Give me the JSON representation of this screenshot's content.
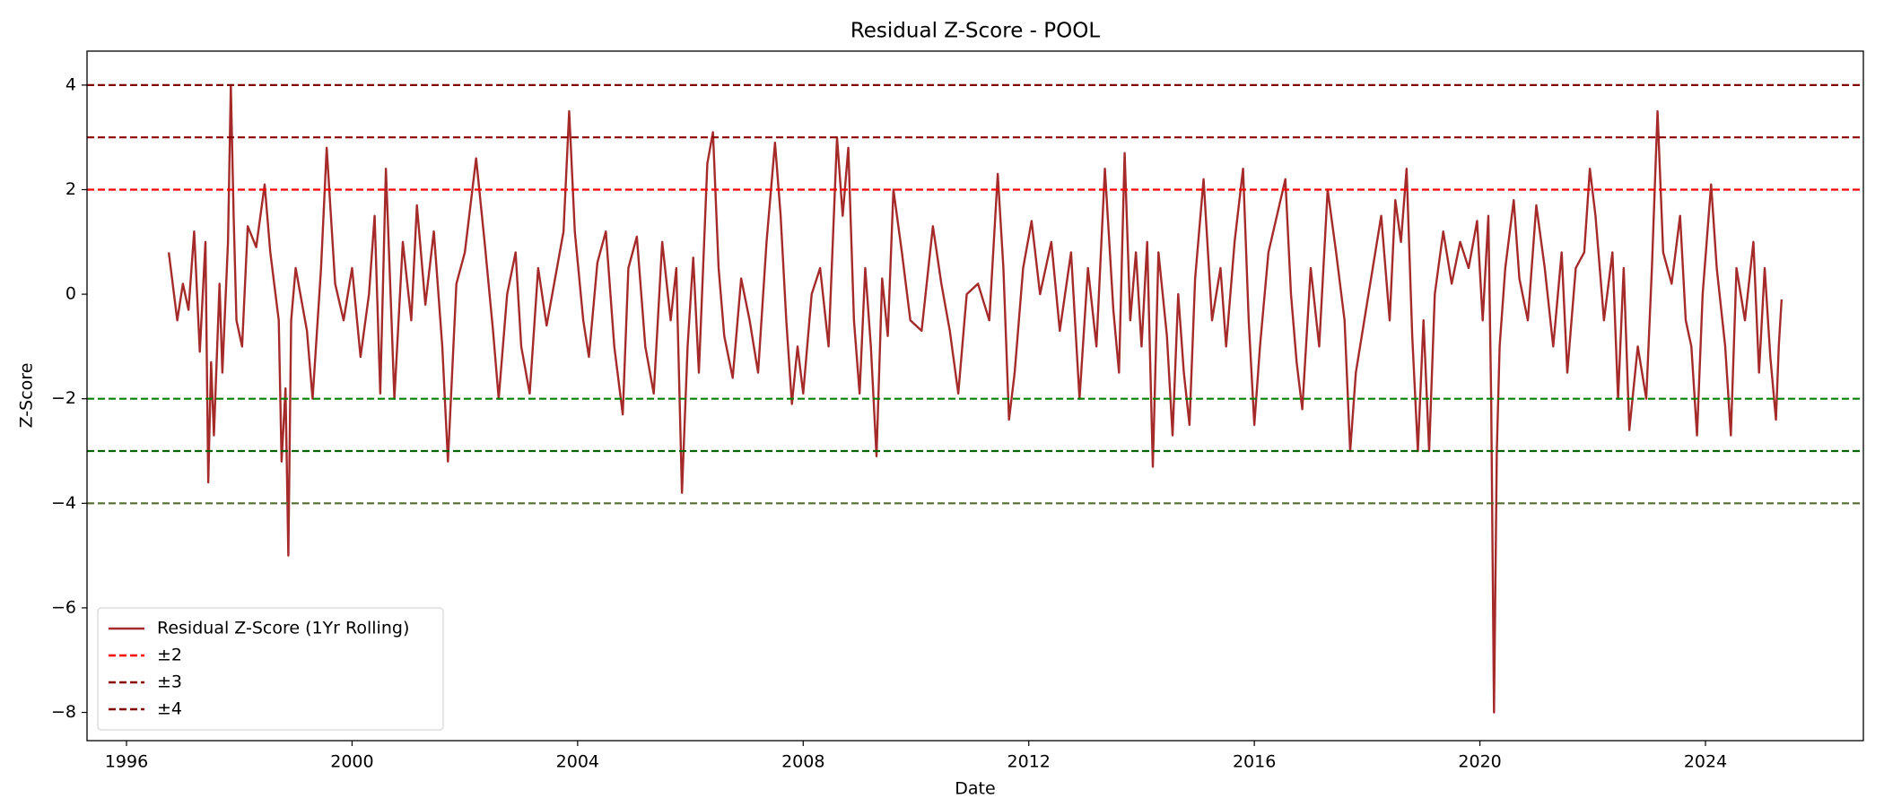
{
  "chart_data": {
    "type": "line",
    "title": "Residual Z-Score - POOL",
    "x_label": "Date",
    "y_label": "Z-Score",
    "x": [
      1996.75,
      1996.9,
      1997.0,
      1997.1,
      1997.2,
      1997.3,
      1997.4,
      1997.45,
      1997.5,
      1997.55,
      1997.65,
      1997.7,
      1997.8,
      1997.85,
      1997.9,
      1997.95,
      1998.05,
      1998.15,
      1998.3,
      1998.45,
      1998.55,
      1998.7,
      1998.75,
      1998.82,
      1998.87,
      1998.92,
      1999.0,
      1999.2,
      1999.3,
      1999.45,
      1999.55,
      1999.7,
      1999.85,
      2000.0,
      2000.15,
      2000.3,
      2000.4,
      2000.5,
      2000.6,
      2000.7,
      2000.75,
      2000.9,
      2001.05,
      2001.15,
      2001.3,
      2001.45,
      2001.6,
      2001.7,
      2001.85,
      2002.0,
      2002.2,
      2002.35,
      2002.5,
      2002.6,
      2002.75,
      2002.9,
      2003.0,
      2003.15,
      2003.3,
      2003.45,
      2003.6,
      2003.75,
      2003.85,
      2003.95,
      2004.1,
      2004.2,
      2004.35,
      2004.5,
      2004.65,
      2004.8,
      2004.9,
      2005.05,
      2005.2,
      2005.35,
      2005.5,
      2005.65,
      2005.75,
      2005.85,
      2005.95,
      2006.05,
      2006.15,
      2006.3,
      2006.4,
      2006.5,
      2006.6,
      2006.75,
      2006.9,
      2007.05,
      2007.2,
      2007.35,
      2007.5,
      2007.6,
      2007.7,
      2007.8,
      2007.9,
      2008.0,
      2008.15,
      2008.3,
      2008.45,
      2008.6,
      2008.7,
      2008.8,
      2008.9,
      2009.0,
      2009.1,
      2009.2,
      2009.3,
      2009.4,
      2009.5,
      2009.6,
      2009.75,
      2009.9,
      2010.1,
      2010.3,
      2010.45,
      2010.6,
      2010.75,
      2010.9,
      2011.1,
      2011.3,
      2011.45,
      2011.55,
      2011.65,
      2011.75,
      2011.9,
      2012.05,
      2012.2,
      2012.4,
      2012.55,
      2012.75,
      2012.9,
      2013.05,
      2013.2,
      2013.35,
      2013.5,
      2013.6,
      2013.7,
      2013.8,
      2013.9,
      2014.0,
      2014.1,
      2014.2,
      2014.3,
      2014.45,
      2014.55,
      2014.65,
      2014.75,
      2014.85,
      2014.95,
      2015.1,
      2015.25,
      2015.4,
      2015.5,
      2015.65,
      2015.8,
      2015.9,
      2016.0,
      2016.1,
      2016.25,
      2016.4,
      2016.55,
      2016.65,
      2016.75,
      2016.85,
      2017.0,
      2017.15,
      2017.3,
      2017.45,
      2017.6,
      2017.7,
      2017.8,
      2017.95,
      2018.1,
      2018.25,
      2018.4,
      2018.5,
      2018.6,
      2018.7,
      2018.8,
      2018.9,
      2019.0,
      2019.1,
      2019.2,
      2019.35,
      2019.5,
      2019.65,
      2019.8,
      2019.95,
      2020.05,
      2020.15,
      2020.2,
      2020.25,
      2020.3,
      2020.35,
      2020.45,
      2020.6,
      2020.7,
      2020.85,
      2021.0,
      2021.15,
      2021.3,
      2021.45,
      2021.55,
      2021.7,
      2021.85,
      2021.95,
      2022.05,
      2022.2,
      2022.35,
      2022.45,
      2022.55,
      2022.65,
      2022.8,
      2022.95,
      2023.05,
      2023.15,
      2023.25,
      2023.4,
      2023.55,
      2023.65,
      2023.75,
      2023.85,
      2023.95,
      2024.1,
      2024.2,
      2024.35,
      2024.45,
      2024.55,
      2024.7,
      2024.85,
      2024.95,
      2025.05,
      2025.15,
      2025.25,
      2025.3,
      2025.35
    ],
    "series": [
      {
        "name": "Residual Z-Score (1Yr Rolling)",
        "color": "#a52a2a",
        "values": [
          0.8,
          -0.5,
          0.2,
          -0.3,
          1.2,
          -1.1,
          1.0,
          -3.6,
          -1.3,
          -2.7,
          0.2,
          -1.5,
          1.0,
          4.0,
          1.5,
          -0.5,
          -1.0,
          1.3,
          0.9,
          2.1,
          0.8,
          -0.5,
          -3.2,
          -1.8,
          -5.0,
          -0.5,
          0.5,
          -0.7,
          -2.0,
          0.5,
          2.8,
          0.2,
          -0.5,
          0.5,
          -1.2,
          0.0,
          1.5,
          -1.9,
          2.4,
          -0.5,
          -2.0,
          1.0,
          -0.5,
          1.7,
          -0.2,
          1.2,
          -1.0,
          -3.2,
          0.2,
          0.8,
          2.6,
          1.0,
          -0.7,
          -2.0,
          0.0,
          0.8,
          -1.0,
          -1.9,
          0.5,
          -0.6,
          0.3,
          1.2,
          3.5,
          1.2,
          -0.5,
          -1.2,
          0.6,
          1.2,
          -1.0,
          -2.3,
          0.5,
          1.1,
          -1.0,
          -1.9,
          1.0,
          -0.5,
          0.5,
          -3.8,
          -1.0,
          0.7,
          -1.5,
          2.5,
          3.1,
          0.5,
          -0.8,
          -1.6,
          0.3,
          -0.5,
          -1.5,
          1.0,
          2.9,
          1.5,
          -0.5,
          -2.1,
          -1.0,
          -1.9,
          0.0,
          0.5,
          -1.0,
          3.0,
          1.5,
          2.8,
          -0.5,
          -1.9,
          0.5,
          -1.0,
          -3.1,
          0.3,
          -0.8,
          2.0,
          0.8,
          -0.5,
          -0.7,
          1.3,
          0.2,
          -0.7,
          -1.9,
          0.0,
          0.2,
          -0.5,
          2.3,
          0.5,
          -2.4,
          -1.5,
          0.5,
          1.4,
          0.0,
          1.0,
          -0.7,
          0.8,
          -2.0,
          0.5,
          -1.0,
          2.4,
          -0.3,
          -1.5,
          2.7,
          -0.5,
          0.8,
          -1.0,
          1.0,
          -3.3,
          0.8,
          -0.8,
          -2.7,
          0.0,
          -1.5,
          -2.5,
          0.3,
          2.2,
          -0.5,
          0.5,
          -1.0,
          1.0,
          2.4,
          -0.5,
          -2.5,
          -1.0,
          0.8,
          1.5,
          2.2,
          0.0,
          -1.3,
          -2.2,
          0.5,
          -1.0,
          2.0,
          0.8,
          -0.5,
          -3.0,
          -1.5,
          -0.5,
          0.5,
          1.5,
          -0.5,
          1.8,
          1.0,
          2.4,
          -0.8,
          -3.0,
          -0.5,
          -3.0,
          0.0,
          1.2,
          0.2,
          1.0,
          0.5,
          1.4,
          -0.5,
          1.5,
          -2.0,
          -8.0,
          -3.0,
          -1.0,
          0.5,
          1.8,
          0.3,
          -0.5,
          1.7,
          0.5,
          -1.0,
          0.8,
          -1.5,
          0.5,
          0.8,
          2.4,
          1.5,
          -0.5,
          0.8,
          -2.0,
          0.5,
          -2.6,
          -1.0,
          -2.0,
          0.5,
          3.5,
          0.8,
          0.2,
          1.5,
          -0.5,
          -1.0,
          -2.7,
          0.0,
          2.1,
          0.5,
          -1.0,
          -2.7,
          0.5,
          -0.5,
          1.0,
          -1.5,
          0.5,
          -1.2,
          -2.4,
          -1.0,
          -0.1
        ]
      }
    ],
    "hlines": [
      {
        "name": "±2",
        "values": [
          2,
          -2
        ],
        "colors": [
          "#ff0000",
          "#008000"
        ]
      },
      {
        "name": "±3",
        "values": [
          3,
          -3
        ],
        "colors": [
          "#8b0000",
          "#006400"
        ]
      },
      {
        "name": "±4",
        "values": [
          4,
          -4
        ],
        "colors": [
          "#800000",
          "#556b2f"
        ]
      }
    ],
    "xlim": [
      1995.3,
      2026.8
    ],
    "xticks": [
      1996,
      2000,
      2004,
      2008,
      2012,
      2016,
      2020,
      2024
    ],
    "ylim": [
      -8.54,
      4.65
    ],
    "yticks": [
      {
        "value": -8,
        "label": "−8"
      },
      {
        "value": -6,
        "label": "−6"
      },
      {
        "value": -4,
        "label": "−4"
      },
      {
        "value": -2,
        "label": "−2"
      },
      0,
      2,
      4
    ],
    "grid": false,
    "legend": "lower left"
  }
}
